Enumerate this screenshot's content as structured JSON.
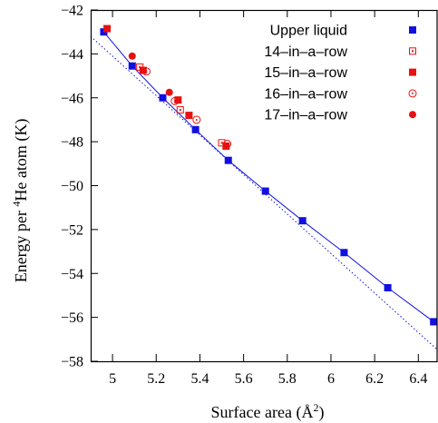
{
  "chart_data": {
    "type": "scatter",
    "title": "",
    "xlabel": "Surface area (Å²)",
    "xlabel_parts": {
      "text": "Surface area (Å",
      "sup": "2",
      "close": ")"
    },
    "ylabel": "Energy per ⁴He atom (K)",
    "ylabel_parts": {
      "pre": "Energy per ",
      "sup": "4",
      "post": "He atom (K)"
    },
    "xlim": [
      4.9,
      6.49
    ],
    "ylim": [
      -58,
      -42
    ],
    "x_ticks": [
      5,
      5.2,
      5.4,
      5.6,
      5.8,
      6,
      6.2,
      6.4
    ],
    "x_tick_labels": [
      "5",
      "5.2",
      "5.4",
      "5.6",
      "5.8",
      "6",
      "6.2",
      "6.4"
    ],
    "y_ticks": [
      -42,
      -44,
      -46,
      -48,
      -50,
      -52,
      -54,
      -56,
      -58
    ],
    "y_tick_labels": [
      "−42",
      "−44",
      "−46",
      "−48",
      "−50",
      "−52",
      "−54",
      "−56",
      "−58"
    ],
    "grid": false,
    "legend_position": "top-right",
    "colors": {
      "blue": "#1010e0",
      "red": "#e81010",
      "axis": "#000000"
    },
    "series": [
      {
        "name": "Upper liquid",
        "marker": "filled-square",
        "color": "#1010e0",
        "connect": true,
        "x": [
          4.96,
          5.09,
          5.23,
          5.38,
          5.53,
          5.7,
          5.87,
          6.06,
          6.26,
          6.47
        ],
        "y": [
          -43.0,
          -44.55,
          -46.0,
          -47.45,
          -48.85,
          -50.25,
          -51.6,
          -53.05,
          -54.65,
          -56.2
        ]
      },
      {
        "name": "14–in–a–row",
        "marker": "open-square",
        "color": "#e81010",
        "connect": false,
        "x": [
          5.125,
          5.31,
          5.5
        ],
        "y": [
          -44.6,
          -46.55,
          -48.05
        ]
      },
      {
        "name": "15–in–a–row",
        "marker": "filled-square",
        "color": "#e81010",
        "connect": false,
        "x": [
          4.975,
          5.14,
          5.3,
          5.35,
          5.52
        ],
        "y": [
          -42.85,
          -44.75,
          -46.1,
          -46.8,
          -48.2
        ]
      },
      {
        "name": "16–in–a–row",
        "marker": "open-circle",
        "color": "#e81010",
        "connect": false,
        "x": [
          5.155,
          5.285,
          5.385,
          5.525
        ],
        "y": [
          -44.8,
          -46.15,
          -47.0,
          -48.1
        ]
      },
      {
        "name": "17–in–a–row",
        "marker": "filled-circle",
        "color": "#e81010",
        "connect": false,
        "x": [
          5.09,
          5.26
        ],
        "y": [
          -44.1,
          -45.75
        ]
      }
    ],
    "reference_line": {
      "style": "dotted",
      "color": "#1010e0",
      "x": [
        4.9,
        6.49
      ],
      "y": [
        -43.2,
        -57.5
      ]
    }
  }
}
